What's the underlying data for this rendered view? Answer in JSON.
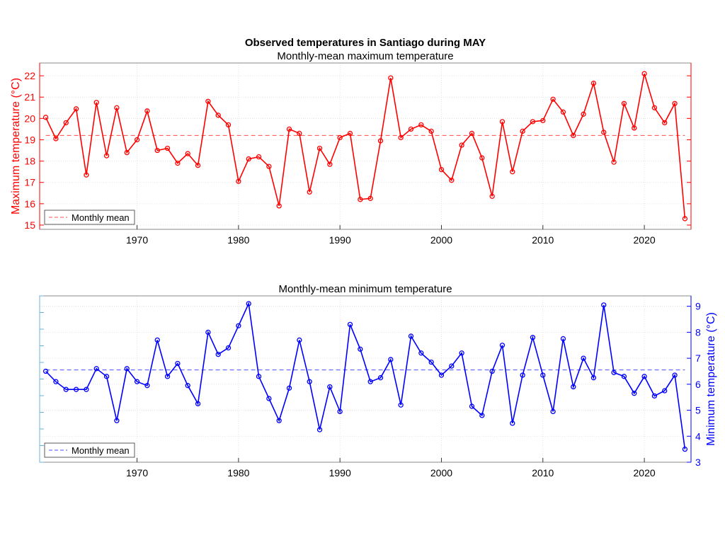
{
  "figure": {
    "title": "Observed temperatures in Santiago during MAY"
  },
  "chart_data": [
    {
      "type": "line",
      "title": "Monthly-mean maximum temperature",
      "ylabel": "Maximum temperature (°C)",
      "xlabel": "",
      "xlim": [
        1960.4,
        2024.6
      ],
      "ylim": [
        14.8,
        22.6
      ],
      "xticks": [
        1970,
        1980,
        1990,
        2000,
        2010,
        2020
      ],
      "yticks": [
        15,
        16,
        17,
        18,
        19,
        20,
        21,
        22
      ],
      "yaxis_side": "left",
      "grid": true,
      "color": "#ff0000",
      "mean": 19.2,
      "legend": {
        "label": "Monthly mean",
        "location": "bottom-left"
      },
      "x": [
        1961,
        1962,
        1963,
        1964,
        1965,
        1966,
        1967,
        1968,
        1969,
        1970,
        1971,
        1972,
        1973,
        1974,
        1975,
        1976,
        1977,
        1978,
        1979,
        1980,
        1981,
        1982,
        1983,
        1984,
        1985,
        1986,
        1987,
        1988,
        1989,
        1990,
        1991,
        1992,
        1993,
        1994,
        1995,
        1996,
        1997,
        1998,
        1999,
        2000,
        2001,
        2002,
        2003,
        2004,
        2005,
        2006,
        2007,
        2008,
        2009,
        2010,
        2011,
        2012,
        2013,
        2014,
        2015,
        2016,
        2017,
        2018,
        2019,
        2020,
        2021,
        2022,
        2023,
        2024
      ],
      "y": [
        20.05,
        19.05,
        19.8,
        20.45,
        17.35,
        20.75,
        18.25,
        20.5,
        18.4,
        19.0,
        20.35,
        18.5,
        18.6,
        17.9,
        18.35,
        17.8,
        20.8,
        20.15,
        19.7,
        17.05,
        18.1,
        18.2,
        17.75,
        15.9,
        19.5,
        19.3,
        16.55,
        18.6,
        17.85,
        19.1,
        19.3,
        16.2,
        16.25,
        18.95,
        21.9,
        19.1,
        19.5,
        19.7,
        19.4,
        17.6,
        17.1,
        18.75,
        19.3,
        18.15,
        16.35,
        19.85,
        17.5,
        19.4,
        19.85,
        19.9,
        20.9,
        20.3,
        19.2,
        20.2,
        21.65,
        19.35,
        17.95,
        20.7,
        19.55,
        22.1,
        20.5,
        19.8,
        20.7,
        15.3
      ]
    },
    {
      "type": "line",
      "title": "Monthly-mean minimum temperature",
      "ylabel": "Minimum temperature (°C)",
      "xlabel": "",
      "xlim": [
        1960.4,
        2024.6
      ],
      "ylim": [
        3.0,
        9.4
      ],
      "xticks": [
        1970,
        1980,
        1990,
        2000,
        2010,
        2020
      ],
      "yticks": [
        3,
        4,
        5,
        6,
        7,
        8,
        9
      ],
      "yaxis_side": "right",
      "grid": true,
      "color": "#0000ff",
      "mean": 6.55,
      "legend": {
        "label": "Monthly mean",
        "location": "bottom-left"
      },
      "x": [
        1961,
        1962,
        1963,
        1964,
        1965,
        1966,
        1967,
        1968,
        1969,
        1970,
        1971,
        1972,
        1973,
        1974,
        1975,
        1976,
        1977,
        1978,
        1979,
        1980,
        1981,
        1982,
        1983,
        1984,
        1985,
        1986,
        1987,
        1988,
        1989,
        1990,
        1991,
        1992,
        1993,
        1994,
        1995,
        1996,
        1997,
        1998,
        1999,
        2000,
        2001,
        2002,
        2003,
        2004,
        2005,
        2006,
        2007,
        2008,
        2009,
        2010,
        2011,
        2012,
        2013,
        2014,
        2015,
        2016,
        2017,
        2018,
        2019,
        2020,
        2021,
        2022,
        2023,
        2024
      ],
      "y": [
        6.5,
        6.1,
        5.8,
        5.8,
        5.8,
        6.6,
        6.3,
        4.6,
        6.6,
        6.1,
        5.95,
        7.7,
        6.3,
        6.8,
        5.95,
        5.25,
        8.0,
        7.15,
        7.4,
        8.25,
        9.1,
        6.3,
        5.45,
        4.6,
        5.85,
        7.7,
        6.1,
        4.25,
        5.9,
        4.95,
        8.3,
        7.35,
        6.1,
        6.25,
        6.95,
        5.2,
        7.85,
        7.2,
        6.85,
        6.35,
        6.7,
        7.2,
        5.15,
        4.8,
        6.5,
        7.5,
        4.5,
        6.35,
        7.8,
        6.35,
        4.95,
        7.75,
        5.9,
        7.0,
        6.25,
        9.05,
        6.45,
        6.3,
        5.65,
        6.3,
        5.55,
        5.75,
        6.35,
        3.5
      ]
    }
  ]
}
